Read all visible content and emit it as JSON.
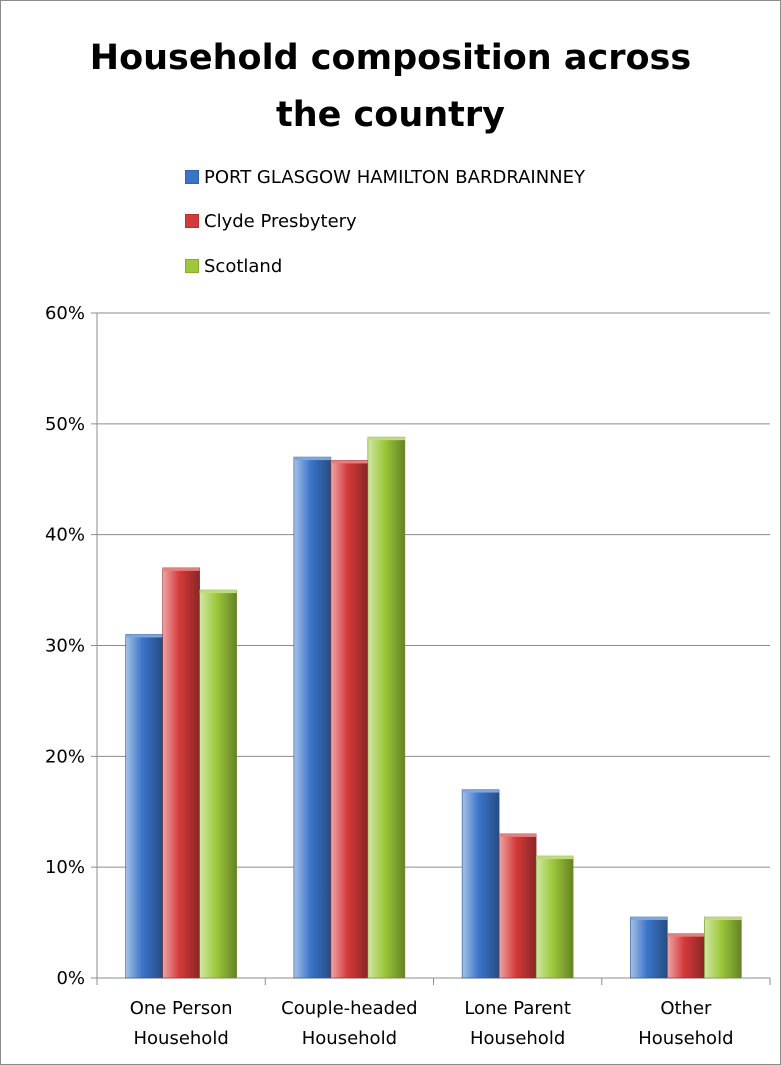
{
  "chart_data": {
    "type": "bar",
    "title": "Household composition across the country",
    "title_lines": [
      "Household composition across",
      "the country"
    ],
    "categories": [
      "One Person Household",
      "Couple-headed Household",
      "Lone Parent Household",
      "Other Household"
    ],
    "category_lines": [
      [
        "One Person",
        "Household"
      ],
      [
        "Couple-headed",
        "Household"
      ],
      [
        "Lone Parent",
        "Household"
      ],
      [
        "Other",
        "Household"
      ]
    ],
    "series": [
      {
        "name": "PORT GLASGOW HAMILTON BARDRAINNEY",
        "color": "#3b75c9",
        "values": [
          31,
          47,
          17,
          5.5
        ]
      },
      {
        "name": "Clyde Presbytery",
        "color": "#d53a3a",
        "values": [
          37,
          46.7,
          13,
          4
        ]
      },
      {
        "name": "Scotland",
        "color": "#9cc83a",
        "values": [
          35,
          48.8,
          11,
          5.5
        ]
      }
    ],
    "ylim": [
      0,
      60
    ],
    "yticks": [
      "0%",
      "10%",
      "20%",
      "30%",
      "40%",
      "50%",
      "60%"
    ],
    "xlabel": "",
    "ylabel": "",
    "grid": true,
    "legend": "top"
  }
}
